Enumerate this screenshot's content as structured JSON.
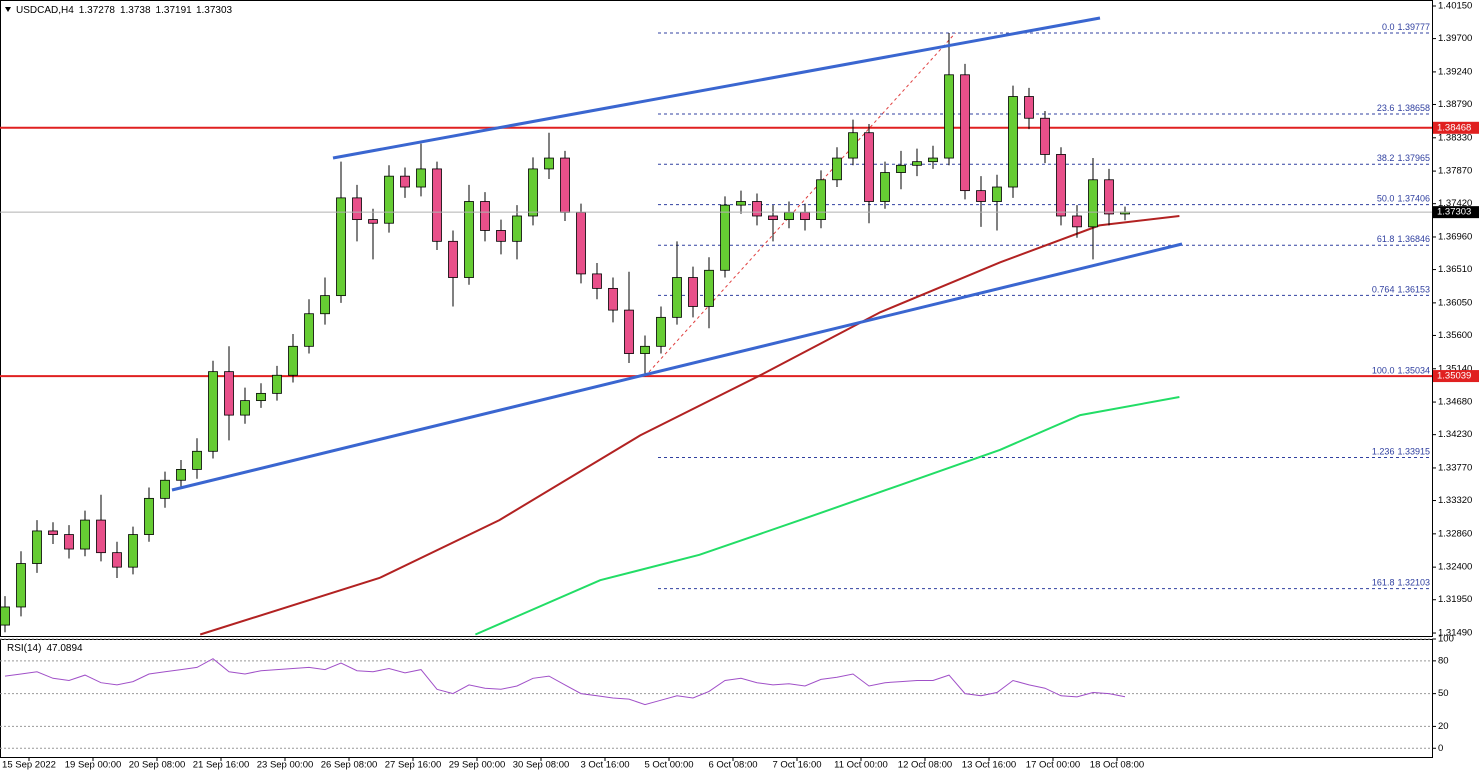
{
  "chart_data": [
    {
      "type": "candlestick",
      "title": "USDCAD,H4",
      "xlim": [
        -0.3125,
        89.1875
      ],
      "ylim": [
        1.31449,
        1.40233
      ],
      "yticks": [
        {
          "value": 1.4015,
          "label": "1.40150"
        },
        {
          "value": 1.397,
          "label": "1.39700"
        },
        {
          "value": 1.3924,
          "label": "1.39240"
        },
        {
          "value": 1.3879,
          "label": "1.38790"
        },
        {
          "value": 1.3833,
          "label": "1.38330"
        },
        {
          "value": 1.3787,
          "label": "1.37870"
        },
        {
          "value": 1.3742,
          "label": "1.37420"
        },
        {
          "value": 1.3696,
          "label": "1.36960"
        },
        {
          "value": 1.3651,
          "label": "1.36510"
        },
        {
          "value": 1.3605,
          "label": "1.36050"
        },
        {
          "value": 1.356,
          "label": "1.35600"
        },
        {
          "value": 1.3514,
          "label": "1.35140"
        },
        {
          "value": 1.3468,
          "label": "1.34680"
        },
        {
          "value": 1.3423,
          "label": "1.34230"
        },
        {
          "value": 1.3377,
          "label": "1.33770"
        },
        {
          "value": 1.3332,
          "label": "1.33320"
        },
        {
          "value": 1.3286,
          "label": "1.32860"
        },
        {
          "value": 1.324,
          "label": "1.32400"
        },
        {
          "value": 1.3195,
          "label": "1.31950"
        },
        {
          "value": 1.3149,
          "label": "1.31490"
        }
      ],
      "up_color": "#66cc33",
      "down_color": "#e8508a",
      "open": [
        1.316,
        1.3185,
        1.3245,
        1.329,
        1.3285,
        1.3265,
        1.3305,
        1.326,
        1.324,
        1.3285,
        1.3335,
        1.336,
        1.3375,
        1.34,
        1.351,
        1.345,
        1.347,
        1.348,
        1.3505,
        1.3545,
        1.359,
        1.3615,
        1.375,
        1.372,
        1.3715,
        1.378,
        1.3765,
        1.379,
        1.369,
        1.364,
        1.3745,
        1.3705,
        1.369,
        1.3725,
        1.379,
        1.3805,
        1.373,
        1.3645,
        1.3625,
        1.3595,
        1.3535,
        1.3545,
        1.3585,
        1.364,
        1.36,
        1.365,
        1.374,
        1.3745,
        1.3725,
        1.372,
        1.373,
        1.372,
        1.3775,
        1.3805,
        1.384,
        1.3745,
        1.3785,
        1.3795,
        1.38,
        1.3805,
        1.392,
        1.376,
        1.3745,
        1.3765,
        1.389,
        1.386,
        1.381,
        1.3725,
        1.371,
        1.3775,
        1.37278
      ],
      "high": [
        1.32,
        1.3262,
        1.3305,
        1.3302,
        1.3298,
        1.3318,
        1.334,
        1.3275,
        1.3296,
        1.335,
        1.3372,
        1.3388,
        1.3418,
        1.3525,
        1.3545,
        1.3488,
        1.3494,
        1.3518,
        1.3562,
        1.361,
        1.364,
        1.38,
        1.3768,
        1.3735,
        1.3795,
        1.3792,
        1.3825,
        1.38,
        1.3705,
        1.3768,
        1.3758,
        1.372,
        1.374,
        1.3806,
        1.384,
        1.3815,
        1.3742,
        1.366,
        1.364,
        1.3648,
        1.356,
        1.36,
        1.369,
        1.3655,
        1.3668,
        1.3752,
        1.376,
        1.3756,
        1.374,
        1.3745,
        1.3742,
        1.3788,
        1.382,
        1.3858,
        1.3852,
        1.38,
        1.3815,
        1.3818,
        1.3822,
        1.39777,
        1.3935,
        1.378,
        1.3782,
        1.3905,
        1.3902,
        1.387,
        1.382,
        1.374,
        1.3805,
        1.379,
        1.3738
      ],
      "low": [
        1.315,
        1.3172,
        1.3232,
        1.3272,
        1.3252,
        1.3255,
        1.3248,
        1.3225,
        1.323,
        1.3275,
        1.3322,
        1.335,
        1.3362,
        1.339,
        1.3415,
        1.3438,
        1.346,
        1.347,
        1.3495,
        1.3535,
        1.3575,
        1.3605,
        1.369,
        1.3665,
        1.3702,
        1.375,
        1.3752,
        1.3678,
        1.36,
        1.363,
        1.369,
        1.3672,
        1.3665,
        1.3712,
        1.3776,
        1.3718,
        1.3632,
        1.361,
        1.3578,
        1.3522,
        1.35034,
        1.3535,
        1.3575,
        1.3585,
        1.357,
        1.364,
        1.3728,
        1.3712,
        1.369,
        1.3708,
        1.3705,
        1.3708,
        1.3765,
        1.3795,
        1.3715,
        1.3735,
        1.3762,
        1.378,
        1.379,
        1.3795,
        1.3748,
        1.371,
        1.3705,
        1.375,
        1.3845,
        1.3798,
        1.3712,
        1.3695,
        1.3665,
        1.3712,
        1.37191
      ],
      "close": [
        1.3185,
        1.3245,
        1.329,
        1.3285,
        1.3265,
        1.3305,
        1.326,
        1.324,
        1.3285,
        1.3335,
        1.336,
        1.3375,
        1.34,
        1.351,
        1.345,
        1.347,
        1.348,
        1.3505,
        1.3545,
        1.359,
        1.3615,
        1.375,
        1.372,
        1.3715,
        1.378,
        1.3765,
        1.379,
        1.369,
        1.364,
        1.3745,
        1.3705,
        1.369,
        1.3725,
        1.379,
        1.3805,
        1.373,
        1.3645,
        1.3625,
        1.3595,
        1.3535,
        1.3545,
        1.3585,
        1.364,
        1.36,
        1.365,
        1.374,
        1.3745,
        1.3725,
        1.372,
        1.373,
        1.372,
        1.3775,
        1.3805,
        1.384,
        1.3745,
        1.3785,
        1.3795,
        1.38,
        1.3805,
        1.392,
        1.376,
        1.3745,
        1.3765,
        1.389,
        1.386,
        1.381,
        1.3725,
        1.371,
        1.3775,
        1.37278,
        1.37303
      ],
      "last_color": "#000000",
      "ma_lines": [
        {
          "color": "#b22222",
          "x": [
            12.2,
            23.4,
            30.9,
            39.7,
            47.2,
            54.7,
            62.2,
            68.4,
            73.4
          ],
          "values": [
            1.3147,
            1.3225,
            1.3305,
            1.3422,
            1.3505,
            1.3592,
            1.3661,
            1.3712,
            1.3725
          ]
        },
        {
          "color": "#22dd66",
          "x": [
            29.4,
            37.2,
            43.4,
            49.7,
            55.9,
            62.2,
            67.2,
            73.4
          ],
          "values": [
            1.3147,
            1.3222,
            1.3257,
            1.3305,
            1.3353,
            1.3402,
            1.345,
            1.3475
          ]
        }
      ],
      "trendlines": [
        {
          "color": "#3a66d0",
          "x": [
            20.5,
            68.44
          ],
          "values": [
            1.38051,
            1.39984
          ]
        },
        {
          "color": "#3a66d0",
          "x": [
            10.44,
            73.56
          ],
          "values": [
            1.33465,
            1.36863
          ]
        }
      ],
      "fib_color": "#3040a0",
      "fib_anchor": {
        "x": [
          40,
          59.4
        ],
        "values": [
          1.35034,
          1.39777
        ]
      },
      "fib_levels": [
        {
          "level": "0.0",
          "price": 1.39777
        },
        {
          "level": "23.6",
          "price": 1.38658
        },
        {
          "level": "38.2",
          "price": 1.37965
        },
        {
          "level": "50.0",
          "price": 1.37406
        },
        {
          "level": "61.8",
          "price": 1.36846
        },
        {
          "level": "0.764",
          "price": 1.36153
        },
        {
          "level": "100.0",
          "price": 1.35034
        },
        {
          "level": "1.236",
          "price": 1.33915
        },
        {
          "level": "161.8",
          "price": 1.32103
        }
      ],
      "levels": [
        {
          "price": 1.38468,
          "color": "#e02020"
        },
        {
          "price": 1.35039,
          "color": "#e02020"
        }
      ]
    },
    {
      "type": "line",
      "title": "RSI(14)",
      "color": "#a050c8",
      "xlim": [
        -0.3125,
        89.1875
      ],
      "ylim": [
        -8,
        100
      ],
      "yticks": [
        100,
        80,
        50,
        20,
        0
      ],
      "values": [
        66,
        68,
        70,
        64,
        62,
        67,
        60,
        58,
        61,
        68,
        70,
        72,
        74,
        82,
        70,
        68,
        71,
        72,
        73,
        74,
        72,
        78,
        71,
        70,
        73,
        69,
        72,
        54,
        50,
        58,
        55,
        54,
        57,
        64,
        66,
        58,
        50,
        48,
        46,
        45,
        40,
        44,
        48,
        46,
        52,
        62,
        64,
        60,
        58,
        59,
        57,
        63,
        65,
        68,
        57,
        60,
        61,
        62,
        62,
        67,
        50,
        48,
        51,
        62,
        58,
        55,
        48,
        47,
        51,
        50,
        47.0894
      ],
      "xticks": [
        {
          "value": 1.5,
          "label": "15 Sep 2022"
        },
        {
          "value": 5.5,
          "label": "19 Sep 00:00"
        },
        {
          "value": 9.5,
          "label": "20 Sep 08:00"
        },
        {
          "value": 13.5,
          "label": "21 Sep 16:00"
        },
        {
          "value": 17.5,
          "label": "23 Sep 00:00"
        },
        {
          "value": 21.5,
          "label": "26 Sep 08:00"
        },
        {
          "value": 25.5,
          "label": "27 Sep 16:00"
        },
        {
          "value": 29.5,
          "label": "29 Sep 00:00"
        },
        {
          "value": 33.5,
          "label": "30 Sep 08:00"
        },
        {
          "value": 37.5,
          "label": "3 Oct 16:00"
        },
        {
          "value": 41.5,
          "label": "5 Oct 00:00"
        },
        {
          "value": 45.5,
          "label": "6 Oct 08:00"
        },
        {
          "value": 49.5,
          "label": "7 Oct 16:00"
        },
        {
          "value": 53.5,
          "label": "11 Oct 00:00"
        },
        {
          "value": 57.5,
          "label": "12 Oct 08:00"
        },
        {
          "value": 61.5,
          "label": "13 Oct 16:00"
        },
        {
          "value": 65.5,
          "label": "17 Oct 00:00"
        },
        {
          "value": 69.5,
          "label": "18 Oct 08:00"
        }
      ]
    }
  ]
}
